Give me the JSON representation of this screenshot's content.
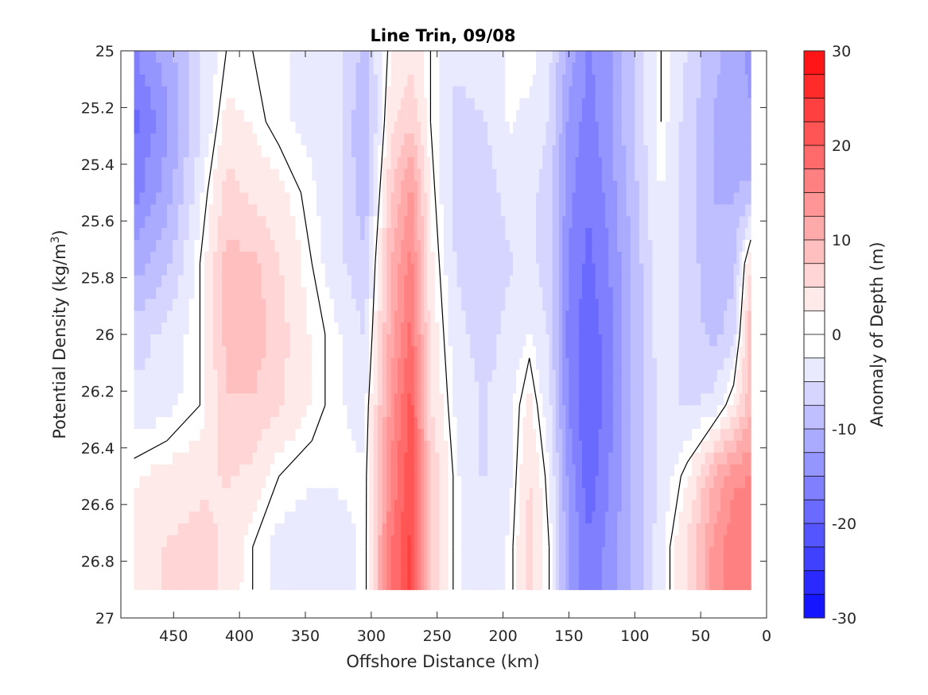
{
  "chart_data": {
    "type": "heatmap",
    "title": "Line Trin, 09/08",
    "xlabel": "Offshore Distance (km)",
    "ylabel": "Potential Density (kg/m",
    "ylabel_sup": "3",
    "ylabel_close": ")",
    "xlim": [
      490,
      0
    ],
    "x_reversed": true,
    "ylim": [
      25,
      27
    ],
    "y_reversed": true,
    "xticks": [
      450,
      400,
      350,
      300,
      250,
      200,
      150,
      100,
      50,
      0
    ],
    "yticks": [
      25,
      25.2,
      25.4,
      25.6,
      25.8,
      26,
      26.2,
      26.4,
      26.6,
      26.8,
      27
    ],
    "ytick_labels": [
      "25",
      "25.2",
      "25.4",
      "25.6",
      "25.8",
      "26",
      "26.2",
      "26.4",
      "26.6",
      "26.8",
      "27"
    ],
    "colorbar": {
      "label": "Anomaly of Depth (m)",
      "range": [
        -30,
        30
      ],
      "levels_step": 2.5,
      "ticks": [
        30,
        20,
        10,
        0,
        -10,
        -20,
        -30
      ],
      "negative_color": "#0000ff",
      "positive_color": "#ff0000",
      "neutral_color": "#ffffff"
    },
    "zero_contour_color": "#000000",
    "x": [
      480,
      455,
      430,
      410,
      390,
      370,
      345,
      325,
      305,
      285,
      270,
      255,
      235,
      215,
      195,
      180,
      165,
      150,
      135,
      120,
      100,
      80,
      60,
      40,
      25,
      12
    ],
    "y": [
      25.0,
      25.25,
      25.5,
      25.75,
      26.0,
      26.25,
      26.5,
      26.75,
      26.9
    ],
    "values": [
      [
        -14,
        -10,
        -4,
        0,
        0,
        -1,
        -2,
        -3,
        -7,
        1,
        3,
        0,
        -3,
        -2,
        -1,
        0,
        -3,
        -10,
        -14,
        -12,
        -6,
        0,
        -4,
        -8,
        -10,
        -12
      ],
      [
        -17,
        -12,
        -4,
        2,
        1,
        -1,
        -2,
        -3,
        -9,
        3,
        6,
        0,
        -5,
        -4,
        -1,
        -2,
        -4,
        -12,
        -15,
        -12,
        -6,
        0,
        -5,
        -9,
        -10,
        -11
      ],
      [
        -15,
        -10,
        -2,
        5,
        3,
        2,
        -1,
        -3,
        -8,
        6,
        12,
        1,
        -5,
        -5,
        -3,
        -3,
        -5,
        -13,
        -16,
        -13,
        -7,
        -1,
        -5,
        -9,
        -9,
        -8
      ],
      [
        -10,
        -7,
        0,
        7,
        7,
        4,
        0,
        -3,
        -6,
        9,
        15,
        2,
        -4,
        -5,
        -4,
        -3,
        -5,
        -14,
        -17,
        -14,
        -8,
        -1,
        -5,
        -8,
        -7,
        4
      ],
      [
        -5,
        -3,
        0,
        7,
        8,
        5,
        1,
        -1,
        -4,
        10,
        17,
        3,
        -3,
        -5,
        -3,
        -1,
        -4,
        -15,
        -18,
        -15,
        -8,
        -2,
        -5,
        -7,
        -5,
        9
      ],
      [
        -3,
        -2,
        0,
        6,
        6,
        4,
        1,
        -1,
        -2,
        12,
        20,
        4,
        -2,
        -4,
        -2,
        2,
        -3,
        -14,
        -19,
        -15,
        -8,
        -3,
        -4,
        -3,
        2,
        8
      ],
      [
        1,
        2,
        3,
        4,
        3,
        0,
        -1,
        -1,
        -1,
        14,
        21,
        6,
        -1,
        -4,
        -2,
        4,
        -1,
        -12,
        -18,
        -14,
        -8,
        -3,
        1,
        9,
        13,
        14
      ],
      [
        2,
        4,
        5,
        3,
        0,
        -2,
        -3,
        -2,
        -1,
        16,
        22,
        6,
        -1,
        -3,
        -1,
        5,
        0,
        -11,
        -16,
        -13,
        -8,
        -2,
        4,
        12,
        16,
        14
      ],
      [
        2,
        4,
        5,
        3,
        0,
        -2,
        -3,
        -2,
        -1,
        16,
        22,
        6,
        -1,
        -3,
        -1,
        5,
        0,
        -11,
        -16,
        -13,
        -8,
        -2,
        4,
        12,
        16,
        14
      ]
    ],
    "data_bottom": 26.9
  }
}
